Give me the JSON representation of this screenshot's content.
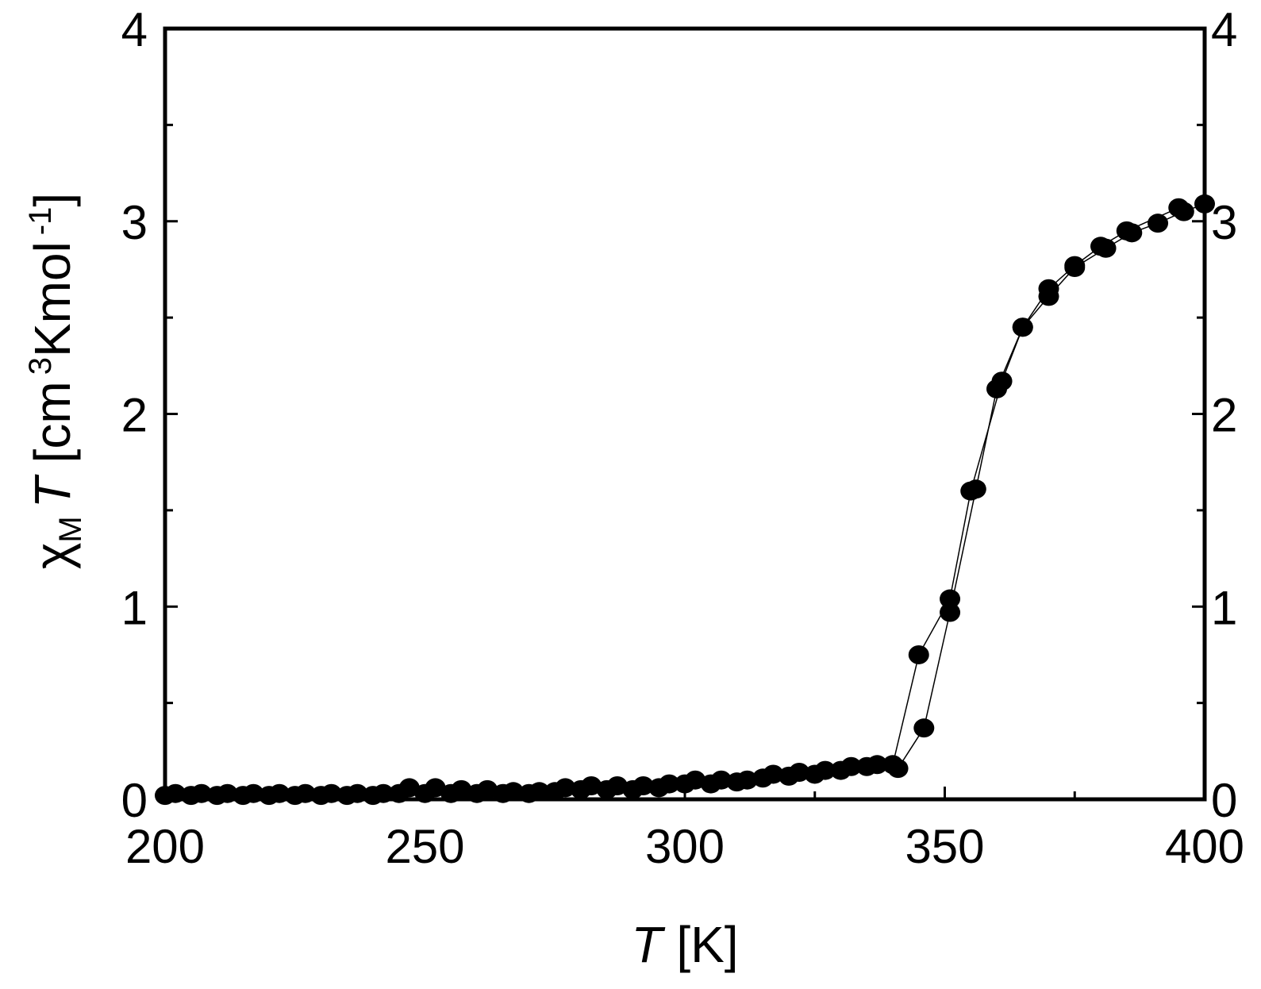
{
  "chart_data": {
    "type": "scatter",
    "xlabel_parts": [
      "T",
      "[K]"
    ],
    "ylabel_parts": [
      "χ",
      "M",
      "T",
      "[cm",
      "3",
      "Kmol",
      "-1",
      "]"
    ],
    "xlim": [
      200,
      400
    ],
    "xticks": [
      200,
      250,
      300,
      350,
      400
    ],
    "xminorticks": [
      225,
      275,
      325,
      375
    ],
    "ylim": [
      0,
      4
    ],
    "yticks": [
      0,
      1,
      2,
      3,
      4
    ],
    "yminorticks": [
      0.5,
      1.5,
      2.5,
      3.5
    ],
    "y2lim": [
      0,
      4
    ],
    "y2ticks": [
      0,
      1,
      2,
      3,
      4
    ],
    "series": [
      {
        "color": "#000000",
        "x": [
          200,
          205,
          210,
          215,
          220,
          225,
          230,
          235,
          240,
          245,
          250,
          255,
          260,
          265,
          270,
          275,
          280,
          285,
          290,
          295,
          300,
          305,
          310,
          315,
          320,
          325,
          330,
          335,
          341,
          346,
          351,
          356,
          360,
          365,
          370,
          375,
          381,
          386,
          391,
          396,
          400
        ],
        "values": [
          0.02,
          0.02,
          0.02,
          0.02,
          0.02,
          0.02,
          0.02,
          0.02,
          0.02,
          0.03,
          0.03,
          0.03,
          0.03,
          0.03,
          0.03,
          0.04,
          0.05,
          0.05,
          0.05,
          0.06,
          0.08,
          0.08,
          0.09,
          0.11,
          0.12,
          0.13,
          0.15,
          0.17,
          0.16,
          0.37,
          0.97,
          1.61,
          2.13,
          2.45,
          2.61,
          2.76,
          2.86,
          2.94,
          2.99,
          3.05,
          3.09
        ]
      },
      {
        "color": "#000000",
        "x": [
          202,
          207,
          212,
          217,
          222,
          227,
          232,
          237,
          242,
          247,
          252,
          257,
          262,
          267,
          272,
          277,
          282,
          287,
          292,
          297,
          302,
          307,
          312,
          317,
          322,
          327,
          332,
          337,
          340,
          345,
          351,
          355,
          361,
          365,
          370,
          375,
          380,
          385,
          395
        ],
        "values": [
          0.03,
          0.03,
          0.03,
          0.03,
          0.03,
          0.03,
          0.03,
          0.03,
          0.03,
          0.06,
          0.06,
          0.05,
          0.05,
          0.04,
          0.04,
          0.06,
          0.07,
          0.07,
          0.07,
          0.08,
          0.1,
          0.1,
          0.1,
          0.13,
          0.14,
          0.15,
          0.17,
          0.18,
          0.18,
          0.75,
          1.04,
          1.6,
          2.17,
          2.45,
          2.65,
          2.77,
          2.87,
          2.95,
          3.07
        ]
      }
    ]
  }
}
